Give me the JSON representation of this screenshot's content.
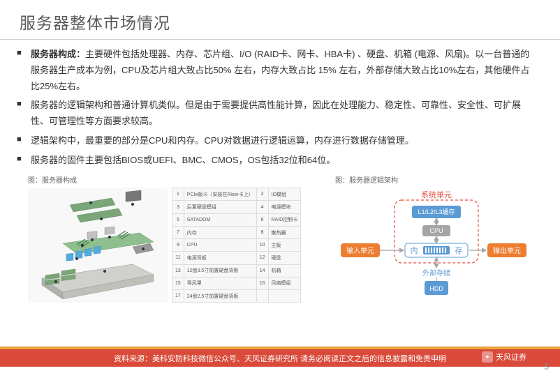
{
  "title": "服务器整体市场情况",
  "bullets": {
    "b1_label": "服务器构成：",
    "b1_text": "主要硬件包括处理器、内存、芯片组、I/O (RAID卡、网卡、HBA卡) 、硬盘、机箱 (电源、风扇)。以一台普通的服务器生产成本为例，CPU及芯片组大致占比50% 左右，内存大致占比 15% 左右，外部存储大致占比10%左右，其他硬件占比25%左右。",
    "b2": "服务器的逻辑架构和普通计算机类似。但是由于需要提供高性能计算，因此在处理能力、稳定性、可靠性、安全性、可扩展性、可管理性等方面要求较高。",
    "b3": "逻辑架构中，最重要的部分是CPU和内存。CPU对数据进行逻辑运算，内存进行数据存储管理。",
    "b4": "服务器的固件主要包括BIOS或UEFI、BMC、CMOS，OS包括32位和64位。"
  },
  "fig1": {
    "caption": "图：服务器构成",
    "rows": [
      {
        "n1": "1",
        "t1": "PCIe板卡（安装在Riser卡上）",
        "n2": "2",
        "t2": "IO模组"
      },
      {
        "n1": "3",
        "t1": "后置硬盘模组",
        "n2": "4",
        "t2": "电源模块"
      },
      {
        "n1": "5",
        "t1": "SATADOM",
        "n2": "6",
        "t2": "RAID控制卡"
      },
      {
        "n1": "7",
        "t1": "内存",
        "n2": "8",
        "t2": "散热器"
      },
      {
        "n1": "9",
        "t1": "CPU",
        "n2": "10",
        "t2": "主板"
      },
      {
        "n1": "11",
        "t1": "电源背板",
        "n2": "12",
        "t2": "硬盘"
      },
      {
        "n1": "13",
        "t1": "12盘3.5寸前置硬盘背板",
        "n2": "14",
        "t2": "机箱"
      },
      {
        "n1": "15",
        "t1": "导风罩",
        "n2": "16",
        "t2": "风扇模组"
      },
      {
        "n1": "17",
        "t1": "24盘2.5寸前置硬盘背板",
        "n2": "",
        "t2": ""
      }
    ]
  },
  "fig2": {
    "caption": "图：服务器逻辑架构",
    "system_unit": "系统单元",
    "cache": "L1/L2/L3缓存",
    "cpu": "CPU",
    "memory_l": "内",
    "memory_r": "存",
    "input": "输入单元",
    "output": "输出单元",
    "ext_storage": "外部存储",
    "hdd": "HDD",
    "colors": {
      "system_border": "#e74c3c",
      "cache_fill": "#5b9bd5",
      "cpu_fill": "#a5a5a5",
      "mem_border": "#5b9bd5",
      "io_fill": "#ed7d31",
      "ext_text": "#5b9bd5",
      "hdd_fill": "#5b9bd5",
      "arrow": "#a5a5a5"
    }
  },
  "footer": {
    "source": "资料来源：美科安防科技微信公众号、天风证券研究所    请务必阅读正文之后的信息披露和免责申明",
    "logo": "天风证券",
    "page": "5"
  }
}
